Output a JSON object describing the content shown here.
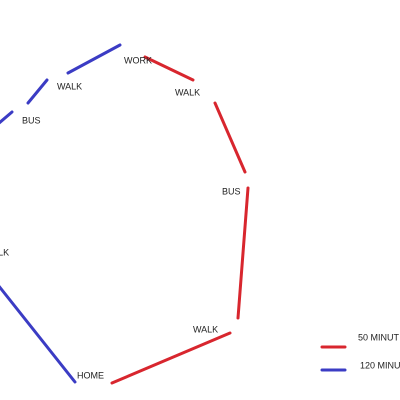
{
  "nodes": [
    {
      "label": "WORK"
    },
    {
      "label": "WALK"
    },
    {
      "label": "BUS"
    },
    {
      "label": "WALK"
    },
    {
      "label": "HOME"
    },
    {
      "label": "WALK"
    },
    {
      "label": "BUS"
    },
    {
      "label": "WALK"
    }
  ],
  "legend": [
    {
      "label": "50 MINUT",
      "color": "#d8262e"
    },
    {
      "label": "120 MINU",
      "color": "#3b3cc4"
    }
  ]
}
